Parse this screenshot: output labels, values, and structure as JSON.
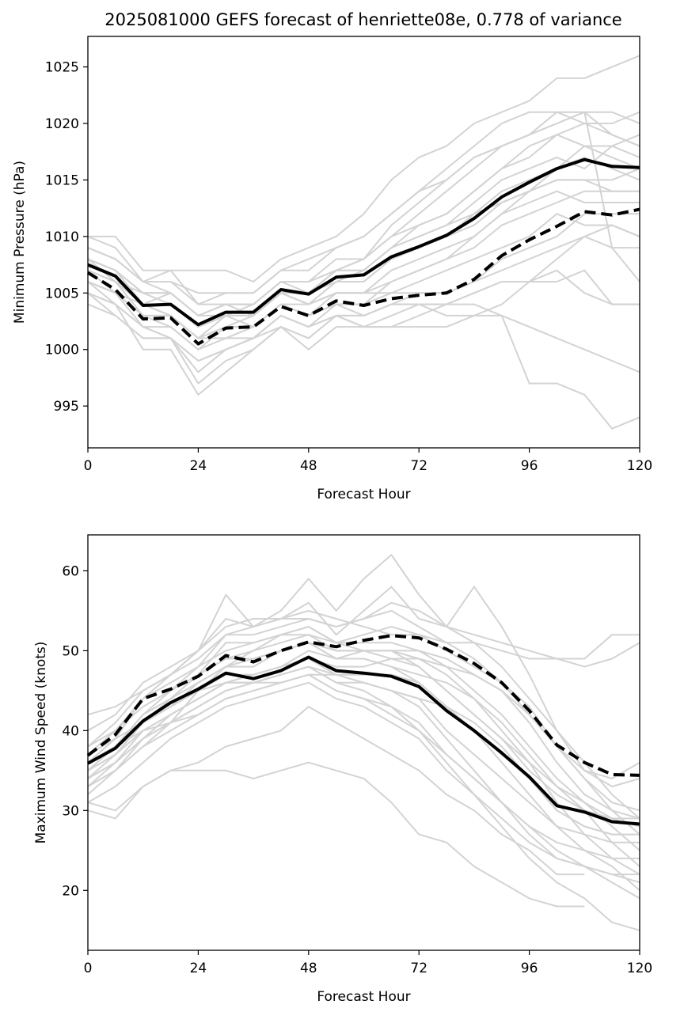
{
  "title": "2025081000 GEFS forecast of henriette08e, 0.778 of variance",
  "chart_data": [
    {
      "type": "line",
      "xlabel": "Forecast Hour",
      "ylabel": "Minimum Pressure (hPa)",
      "xlim": [
        0,
        120
      ],
      "ylim": [
        991.3,
        1027.7
      ],
      "xticks": [
        0,
        24,
        48,
        72,
        96,
        120
      ],
      "yticks": [
        995,
        1000,
        1005,
        1010,
        1015,
        1020,
        1025
      ],
      "grid": false,
      "colors": {
        "members": "#d3d3d3",
        "mean": "#000000"
      },
      "x": [
        0,
        6,
        12,
        18,
        24,
        30,
        36,
        42,
        48,
        54,
        60,
        66,
        72,
        78,
        84,
        90,
        96,
        102,
        108,
        114,
        120
      ],
      "series": [
        {
          "style": "solid",
          "values": [
            1007.5,
            1006.5,
            1003.9,
            1004.0,
            1002.2,
            1003.3,
            1003.3,
            1005.3,
            1004.9,
            1006.4,
            1006.6,
            1008.2,
            1009.1,
            1010.1,
            1011.6,
            1013.5,
            1014.8,
            1016.0,
            1016.8,
            1016.2,
            1016.1
          ]
        },
        {
          "style": "dashed",
          "values": [
            1006.8,
            1005.3,
            1002.7,
            1002.8,
            1000.5,
            1001.9,
            1002.0,
            1003.8,
            1003.0,
            1004.3,
            1003.9,
            1004.5,
            1004.8,
            1005.0,
            1006.2,
            1008.3,
            1009.7,
            1010.9,
            1012.2,
            1011.9,
            1012.4
          ]
        }
      ],
      "members": [
        [
          1010,
          1010,
          1007,
          1007,
          1007,
          1007,
          1006,
          1008,
          1009,
          1010,
          1012,
          1015,
          1017,
          1018,
          1020,
          1021,
          1022,
          1024,
          1024,
          1025,
          1026
        ],
        [
          1009,
          1008,
          1006,
          1006,
          1005,
          1005,
          1005,
          1007,
          1008,
          1009,
          1010,
          1012,
          1014,
          1016,
          1018,
          1020,
          1021,
          1021,
          1020,
          1020,
          1021
        ],
        [
          1008,
          1007,
          1005,
          1005,
          1003,
          1004,
          1004,
          1006,
          1006,
          1008,
          1008,
          1010,
          1011,
          1012,
          1014,
          1016,
          1018,
          1019,
          1018,
          1017,
          1016
        ],
        [
          1007,
          1006,
          1004,
          1003,
          1001,
          1003,
          1003,
          1005,
          1004,
          1006,
          1006,
          1008,
          1009,
          1010,
          1012,
          1014,
          1015,
          1016,
          1017,
          1016,
          1015
        ],
        [
          1006,
          1005,
          1003,
          1003,
          1001,
          1002,
          1002,
          1004,
          1003,
          1005,
          1005,
          1007,
          1008,
          1009,
          1010,
          1012,
          1013,
          1014,
          1013,
          1013,
          1013
        ],
        [
          1005,
          1004,
          1002,
          1002,
          1000,
          1001,
          1001,
          1003,
          1002,
          1004,
          1004,
          1005,
          1006,
          1007,
          1008,
          1009,
          1010,
          1012,
          1011,
          1011,
          1010
        ],
        [
          1005,
          1004,
          1002,
          1001,
          999,
          1000,
          1001,
          1003,
          1002,
          1003,
          1003,
          1004,
          1005,
          1005,
          1006,
          1007,
          1008,
          1009,
          1010,
          1009,
          1009
        ],
        [
          1004,
          1003,
          1001,
          1001,
          998,
          1000,
          1001,
          1002,
          1001,
          1003,
          1002,
          1003,
          1004,
          1004,
          1005,
          1006,
          1006,
          1006,
          1007,
          1004,
          1004
        ],
        [
          1006,
          1004,
          1000,
          1000,
          996,
          998,
          1000,
          1002,
          1000,
          1002,
          1002,
          1002,
          1002,
          1002,
          1003,
          1003,
          1002,
          1001,
          1000,
          999,
          998
        ],
        [
          1007,
          1005,
          1002,
          1001,
          997,
          999,
          1000,
          1002,
          1001,
          1003,
          1003,
          1004,
          1004,
          1004,
          1004,
          1003,
          997,
          997,
          996,
          993,
          994
        ],
        [
          1009,
          1008,
          1006,
          1005,
          1003,
          1004,
          1004,
          1006,
          1006,
          1007,
          1008,
          1010,
          1012,
          1014,
          1016,
          1018,
          1019,
          1021,
          1021,
          1019,
          1018
        ],
        [
          1008,
          1007,
          1005,
          1005,
          1003,
          1004,
          1004,
          1006,
          1005,
          1007,
          1007,
          1009,
          1010,
          1011,
          1013,
          1015,
          1016,
          1017,
          1016,
          1018,
          1019
        ],
        [
          1007,
          1006,
          1005,
          1004,
          1002,
          1003,
          1003,
          1005,
          1005,
          1006,
          1006,
          1008,
          1009,
          1010,
          1011,
          1013,
          1014,
          1015,
          1015,
          1014,
          1014
        ],
        [
          1006,
          1005,
          1003,
          1002,
          1000,
          1002,
          1002,
          1004,
          1003,
          1004,
          1004,
          1006,
          1007,
          1008,
          1009,
          1011,
          1012,
          1013,
          1014,
          1014,
          1014
        ],
        [
          1008,
          1006,
          1004,
          1004,
          1002,
          1003,
          1004,
          1006,
          1006,
          1007,
          1007,
          1009,
          1011,
          1012,
          1014,
          1016,
          1017,
          1019,
          1020,
          1019,
          1018
        ],
        [
          1010,
          1009,
          1006,
          1006,
          1004,
          1005,
          1005,
          1007,
          1007,
          1009,
          1010,
          1012,
          1014,
          1015,
          1017,
          1018,
          1019,
          1020,
          1021,
          1021,
          1020
        ],
        [
          1008,
          1007,
          1004,
          1003,
          1001,
          1002,
          1003,
          1005,
          1004,
          1005,
          1005,
          1006,
          1007,
          1008,
          1010,
          1012,
          1014,
          1016,
          1018,
          1018,
          1017
        ],
        [
          1007,
          1006,
          1004,
          1004,
          1002,
          1003,
          1003,
          1005,
          1004,
          1005,
          1005,
          1005,
          1005,
          1005,
          1006,
          1008,
          1009,
          1010,
          1012,
          1012,
          1012
        ],
        [
          1006,
          1005,
          1004,
          1005,
          1003,
          1003,
          1002,
          1004,
          1003,
          1004,
          1003,
          1004,
          1004,
          1003,
          1003,
          1004,
          1006,
          1008,
          1010,
          1011,
          1010
        ],
        [
          1005,
          1003,
          1001,
          1001,
          999,
          1000,
          1001,
          1003,
          1002,
          1003,
          1002,
          1002,
          1003,
          1004,
          1005,
          1006,
          1006,
          1007,
          1005,
          1004,
          1004
        ],
        [
          1009,
          1008,
          1006,
          1007,
          1004,
          1004,
          1003,
          1005,
          1005,
          1007,
          1008,
          1011,
          1013,
          1015,
          1017,
          1018,
          1019,
          1020,
          1021,
          1009,
          1006
        ],
        [
          1008,
          1006,
          1003,
          1003,
          1001,
          1001,
          1002,
          1004,
          1004,
          1006,
          1007,
          1009,
          1010,
          1011,
          1012,
          1013,
          1014,
          1015,
          1015,
          1015,
          1016
        ]
      ]
    },
    {
      "type": "line",
      "xlabel": "Forecast Hour",
      "ylabel": "Maximum Wind Speed (knots)",
      "xlim": [
        0,
        120
      ],
      "ylim": [
        12.5,
        64.5
      ],
      "xticks": [
        0,
        24,
        48,
        72,
        96,
        120
      ],
      "yticks": [
        20,
        30,
        40,
        50,
        60
      ],
      "grid": false,
      "colors": {
        "members": "#d3d3d3",
        "mean": "#000000"
      },
      "x": [
        0,
        6,
        12,
        18,
        24,
        30,
        36,
        42,
        48,
        54,
        60,
        66,
        72,
        78,
        84,
        90,
        96,
        102,
        108,
        114,
        120
      ],
      "series": [
        {
          "style": "solid",
          "values": [
            35.9,
            37.8,
            41.2,
            43.5,
            45.2,
            47.2,
            46.5,
            47.5,
            49.2,
            47.5,
            47.2,
            46.8,
            45.5,
            42.5,
            40.0,
            37.2,
            34.2,
            30.6,
            29.8,
            28.6,
            28.3
          ]
        },
        {
          "style": "dashed",
          "values": [
            36.9,
            39.5,
            44.0,
            45.2,
            46.8,
            49.4,
            48.6,
            50.0,
            51.1,
            50.5,
            51.3,
            51.9,
            51.6,
            50.2,
            48.4,
            46.0,
            42.5,
            38.2,
            36.0,
            34.5,
            34.4
          ]
        }
      ],
      "members": [
        [
          42,
          43,
          45,
          47,
          49,
          52,
          53,
          54,
          55,
          54,
          53,
          52,
          52,
          51,
          51,
          50,
          49,
          49,
          49,
          52,
          52
        ],
        [
          40,
          42,
          46,
          48,
          50,
          53,
          54,
          54,
          56,
          52,
          55,
          58,
          54,
          53,
          52,
          51,
          50,
          49,
          48,
          49,
          51
        ],
        [
          38,
          41,
          45,
          47,
          50,
          54,
          53,
          55,
          59,
          55,
          59,
          62,
          57,
          53,
          58,
          53,
          47,
          40,
          35,
          34,
          36
        ],
        [
          36,
          39,
          44,
          46,
          48,
          50,
          51,
          52,
          53,
          51,
          52,
          53,
          52,
          50,
          48,
          46,
          43,
          38,
          35,
          33,
          34
        ],
        [
          35,
          38,
          42,
          44,
          46,
          48,
          48,
          50,
          51,
          49,
          50,
          50,
          48,
          45,
          42,
          39,
          35,
          32,
          30,
          29,
          29
        ],
        [
          34,
          37,
          41,
          43,
          45,
          47,
          47,
          48,
          49,
          47,
          47,
          47,
          46,
          43,
          40,
          37,
          34,
          30,
          28,
          27,
          27
        ],
        [
          33,
          36,
          40,
          42,
          44,
          46,
          46,
          47,
          48,
          46,
          46,
          45,
          44,
          40,
          37,
          34,
          31,
          28,
          27,
          26,
          26
        ],
        [
          32,
          35,
          38,
          41,
          43,
          45,
          46,
          46,
          47,
          45,
          44,
          43,
          41,
          37,
          34,
          31,
          28,
          26,
          25,
          24,
          24
        ],
        [
          31,
          33,
          36,
          39,
          41,
          43,
          44,
          45,
          46,
          44,
          43,
          41,
          39,
          35,
          32,
          29,
          26,
          24,
          23,
          22,
          22
        ],
        [
          36,
          38,
          40,
          41,
          42,
          44,
          45,
          46,
          47,
          47,
          46,
          45,
          44,
          43,
          41,
          38,
          34,
          30,
          28,
          27,
          27
        ],
        [
          37,
          39,
          41,
          43,
          45,
          46,
          47,
          48,
          50,
          49,
          49,
          48,
          47,
          46,
          44,
          41,
          37,
          33,
          31,
          29,
          28
        ],
        [
          35,
          37,
          40,
          42,
          44,
          46,
          47,
          48,
          49,
          48,
          48,
          49,
          49,
          48,
          47,
          45,
          42,
          38,
          34,
          31,
          30
        ],
        [
          38,
          40,
          43,
          45,
          47,
          49,
          49,
          50,
          51,
          50,
          50,
          50,
          50,
          49,
          47,
          45,
          41,
          36,
          32,
          30,
          29
        ],
        [
          33,
          35,
          39,
          42,
          44,
          46,
          46,
          47,
          48,
          47,
          46,
          45,
          43,
          39,
          35,
          31,
          27,
          24,
          23,
          22,
          21
        ],
        [
          30,
          29,
          33,
          35,
          35,
          35,
          34,
          35,
          36,
          35,
          34,
          31,
          27,
          26,
          23,
          21,
          19,
          18,
          18,
          null,
          null
        ],
        [
          31,
          30,
          33,
          35,
          36,
          38,
          39,
          40,
          43,
          41,
          39,
          37,
          35,
          32,
          30,
          27,
          25,
          22,
          22,
          null,
          null
        ],
        [
          34,
          36,
          39,
          41,
          45,
          48,
          50,
          52,
          53,
          51,
          50,
          49,
          48,
          45,
          42,
          39,
          36,
          33,
          30,
          26,
          23
        ],
        [
          35,
          37,
          41,
          44,
          47,
          51,
          51,
          52,
          52,
          51,
          51,
          51,
          50,
          48,
          45,
          42,
          38,
          34,
          31,
          28,
          25
        ],
        [
          36,
          38,
          42,
          45,
          48,
          52,
          52,
          53,
          54,
          53,
          54,
          55,
          53,
          51,
          49,
          46,
          42,
          38,
          34,
          30,
          27
        ],
        [
          37,
          40,
          44,
          47,
          50,
          57,
          53,
          54,
          54,
          53,
          54,
          56,
          55,
          53,
          51,
          48,
          44,
          40,
          36,
          32,
          29
        ],
        [
          34,
          36,
          39,
          41,
          43,
          45,
          46,
          47,
          48,
          46,
          45,
          43,
          40,
          36,
          32,
          28,
          24,
          21,
          19,
          16,
          15
        ],
        [
          36,
          38,
          42,
          44,
          47,
          49,
          50,
          51,
          52,
          50,
          50,
          50,
          49,
          47,
          44,
          40,
          36,
          31,
          27,
          24,
          22
        ],
        [
          35,
          37,
          41,
          43,
          46,
          48,
          49,
          50,
          51,
          49,
          49,
          48,
          46,
          43,
          40,
          36,
          32,
          28,
          25,
          23,
          20
        ],
        [
          33,
          35,
          38,
          40,
          42,
          44,
          45,
          46,
          47,
          45,
          44,
          42,
          40,
          37,
          34,
          31,
          28,
          25,
          23,
          21,
          19
        ]
      ]
    }
  ]
}
